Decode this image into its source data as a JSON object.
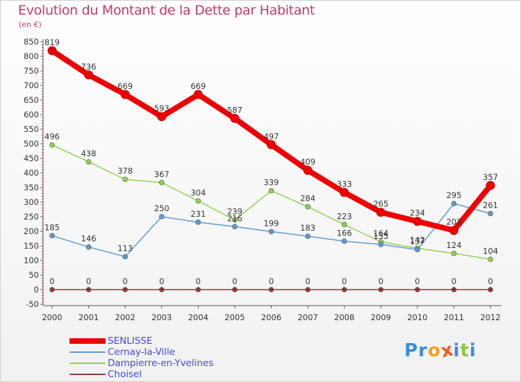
{
  "chart_data": {
    "type": "line",
    "title": "Evolution du Montant de la Dette par Habitant",
    "unit": "(en €)",
    "xlabel": "",
    "ylabel": "",
    "x": [
      "2000",
      "2001",
      "2002",
      "2003",
      "2004",
      "2005",
      "2006",
      "2007",
      "2008",
      "2009",
      "2010",
      "2011",
      "2012"
    ],
    "ylim": [
      -50,
      850
    ],
    "yticks": [
      -50,
      0,
      50,
      100,
      150,
      200,
      250,
      300,
      350,
      400,
      450,
      500,
      550,
      600,
      650,
      700,
      750,
      800,
      850
    ],
    "grid": false,
    "legend_position": "bottom-left",
    "series": [
      {
        "name": "SENLISSE",
        "color": "#ee0000",
        "values": [
          819,
          736,
          669,
          593,
          669,
          587,
          497,
          409,
          333,
          265,
          234,
          203,
          357
        ]
      },
      {
        "name": "Cernay-la-Ville",
        "color": "#5b9bd5",
        "values": [
          185,
          146,
          113,
          250,
          231,
          216,
          199,
          183,
          166,
          155,
          137,
          295,
          261
        ]
      },
      {
        "name": "Dampierre-en-Yvelines",
        "color": "#92d050",
        "values": [
          496,
          438,
          378,
          367,
          304,
          239,
          339,
          284,
          223,
          164,
          142,
          124,
          104
        ]
      },
      {
        "name": "Choisel",
        "color": "#8b3a3a",
        "values": [
          0,
          0,
          0,
          0,
          0,
          0,
          0,
          0,
          0,
          0,
          0,
          0,
          0
        ]
      }
    ]
  },
  "logo": {
    "letters": [
      "P",
      "r",
      "o",
      "x",
      "i",
      "t",
      "i"
    ],
    "colors": [
      "#3a8fd6",
      "#3a8fd6",
      "#f0a020",
      "#f05a28",
      "#3a8fd6",
      "#8dc63f",
      "#3a8fd6"
    ]
  }
}
